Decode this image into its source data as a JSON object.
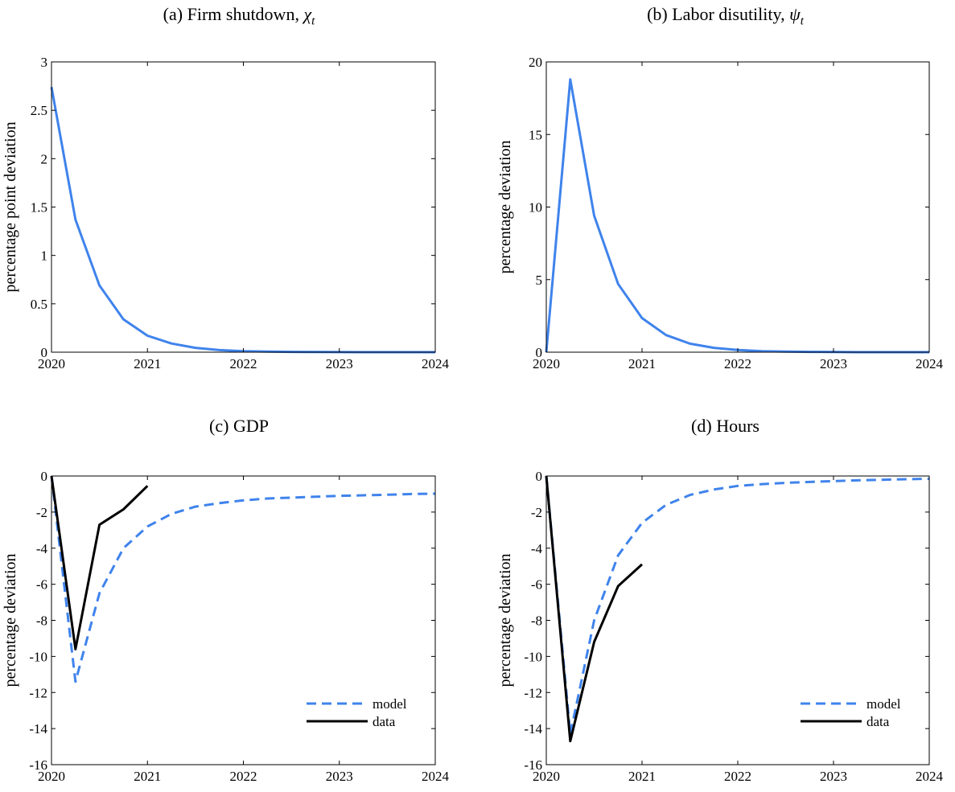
{
  "chart_data": [
    {
      "type": "line",
      "panel_label": "(a)",
      "title_text": "Firm shutdown,",
      "title_symbol": "χ",
      "title_subscript": "t",
      "ylabel": "percentage point deviation",
      "xlabel": "",
      "xlim": [
        2020,
        2024
      ],
      "ylim": [
        0,
        3
      ],
      "xticks": [
        2020,
        2021,
        2022,
        2023,
        2024
      ],
      "xtick_labels": [
        "2020",
        "2021",
        "2022",
        "2023",
        "2024"
      ],
      "yticks": [
        0,
        0.5,
        1,
        1.5,
        2,
        2.5,
        3
      ],
      "ytick_labels": [
        "0",
        "0.5",
        "1",
        "1.5",
        "2",
        "2.5",
        "3"
      ],
      "grid": false,
      "legend": null,
      "series": [
        {
          "color": "#3f83ec",
          "dash": "solid",
          "x": [
            2020,
            2020.25,
            2020.5,
            2020.75,
            2021,
            2021.25,
            2021.5,
            2021.75,
            2022,
            2022.25,
            2022.5,
            2022.75,
            2023,
            2023.25,
            2023.5,
            2023.75,
            2024
          ],
          "y": [
            2.74,
            1.37,
            0.69,
            0.34,
            0.17,
            0.09,
            0.045,
            0.022,
            0.011,
            0.006,
            0.003,
            0.002,
            0.001,
            0,
            0,
            0,
            0
          ]
        }
      ]
    },
    {
      "type": "line",
      "panel_label": "(b)",
      "title_text": "Labor disutility,",
      "title_symbol": "ψ",
      "title_subscript": "t",
      "ylabel": "percentage deviation",
      "xlabel": "",
      "xlim": [
        2020,
        2024
      ],
      "ylim": [
        0,
        20
      ],
      "xticks": [
        2020,
        2021,
        2022,
        2023,
        2024
      ],
      "xtick_labels": [
        "2020",
        "2021",
        "2022",
        "2023",
        "2024"
      ],
      "yticks": [
        0,
        5,
        10,
        15,
        20
      ],
      "ytick_labels": [
        "0",
        "5",
        "10",
        "15",
        "20"
      ],
      "grid": false,
      "legend": null,
      "series": [
        {
          "color": "#3f83ec",
          "dash": "solid",
          "x": [
            2020,
            2020.25,
            2020.5,
            2020.75,
            2021,
            2021.25,
            2021.5,
            2021.75,
            2022,
            2022.25,
            2022.5,
            2022.75,
            2023,
            2023.25,
            2023.5,
            2023.75,
            2024
          ],
          "y": [
            0,
            18.8,
            9.4,
            4.7,
            2.35,
            1.18,
            0.59,
            0.3,
            0.15,
            0.07,
            0.04,
            0.02,
            0.01,
            0,
            0,
            0,
            0
          ]
        }
      ]
    },
    {
      "type": "line",
      "panel_label": "(c)",
      "title_text": "GDP",
      "title_symbol": "",
      "title_subscript": "",
      "ylabel": "percentage deviation",
      "xlabel": "",
      "xlim": [
        2020,
        2024
      ],
      "ylim": [
        -16,
        0
      ],
      "xticks": [
        2020,
        2021,
        2022,
        2023,
        2024
      ],
      "xtick_labels": [
        "2020",
        "2021",
        "2022",
        "2023",
        "2024"
      ],
      "yticks": [
        -16,
        -14,
        -12,
        -10,
        -8,
        -6,
        -4,
        -2,
        0
      ],
      "ytick_labels": [
        "-16",
        "-14",
        "-12",
        "-10",
        "-8",
        "-6",
        "-4",
        "-2",
        "0"
      ],
      "grid": false,
      "legend": "bottom-right",
      "series": [
        {
          "name": "model",
          "color": "#3f83ec",
          "dash": "dashed",
          "x": [
            2020,
            2020.25,
            2020.5,
            2020.75,
            2021,
            2021.25,
            2021.5,
            2021.75,
            2022,
            2022.25,
            2022.5,
            2022.75,
            2023,
            2023.25,
            2023.5,
            2023.75,
            2024
          ],
          "y": [
            0,
            -11.4,
            -6.5,
            -4.0,
            -2.8,
            -2.1,
            -1.7,
            -1.5,
            -1.35,
            -1.25,
            -1.2,
            -1.15,
            -1.1,
            -1.07,
            -1.04,
            -1.0,
            -0.98
          ]
        },
        {
          "name": "data",
          "color": "#000000",
          "dash": "solid",
          "x": [
            2020,
            2020.25,
            2020.5,
            2020.75,
            2021
          ],
          "y": [
            0,
            -9.6,
            -2.7,
            -1.85,
            -0.55
          ]
        }
      ]
    },
    {
      "type": "line",
      "panel_label": "(d)",
      "title_text": "Hours",
      "title_symbol": "",
      "title_subscript": "",
      "ylabel": "percentage deviation",
      "xlabel": "",
      "xlim": [
        2020,
        2024
      ],
      "ylim": [
        -16,
        0
      ],
      "xticks": [
        2020,
        2021,
        2022,
        2023,
        2024
      ],
      "xtick_labels": [
        "2020",
        "2021",
        "2022",
        "2023",
        "2024"
      ],
      "yticks": [
        -16,
        -14,
        -12,
        -10,
        -8,
        -6,
        -4,
        -2,
        0
      ],
      "ytick_labels": [
        "-16",
        "-14",
        "-12",
        "-10",
        "-8",
        "-6",
        "-4",
        "-2",
        "0"
      ],
      "grid": false,
      "legend": "bottom-right",
      "series": [
        {
          "name": "model",
          "color": "#3f83ec",
          "dash": "dashed",
          "x": [
            2020,
            2020.25,
            2020.5,
            2020.75,
            2021,
            2021.25,
            2021.5,
            2021.75,
            2022,
            2022.25,
            2022.5,
            2022.75,
            2023,
            2023.25,
            2023.5,
            2023.75,
            2024
          ],
          "y": [
            0,
            -14.3,
            -8.0,
            -4.4,
            -2.6,
            -1.6,
            -1.05,
            -0.75,
            -0.55,
            -0.45,
            -0.38,
            -0.33,
            -0.28,
            -0.24,
            -0.21,
            -0.18,
            -0.15
          ]
        },
        {
          "name": "data",
          "color": "#000000",
          "dash": "solid",
          "x": [
            2020,
            2020.25,
            2020.5,
            2020.75,
            2021
          ],
          "y": [
            0,
            -14.7,
            -9.2,
            -6.1,
            -4.9
          ]
        }
      ]
    }
  ]
}
